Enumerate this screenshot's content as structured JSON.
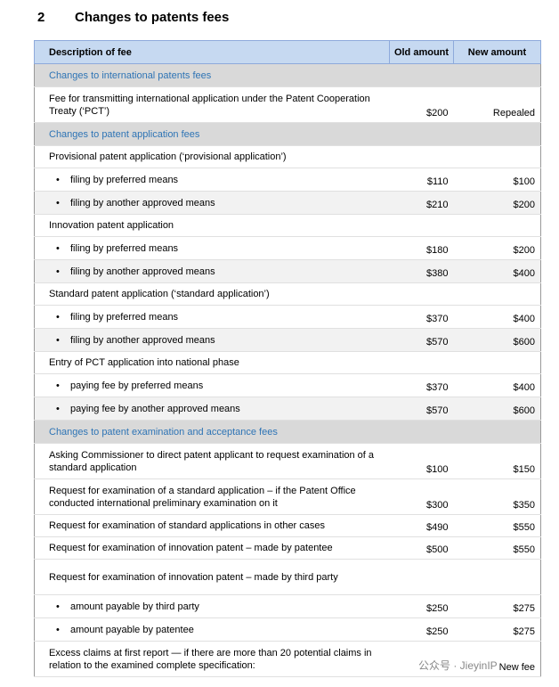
{
  "heading": {
    "number": "2",
    "title": "Changes to patents fees"
  },
  "table": {
    "header": [
      "Description of fee",
      "Old amount",
      "New amount"
    ],
    "sections": [
      {
        "title": "Changes to international patents fees",
        "rows": [
          {
            "description": "Fee for transmitting international application under the Patent Cooperation Treaty (‘PCT’)",
            "old": "$200",
            "new": "Repealed"
          }
        ]
      },
      {
        "title": "Changes to patent application fees",
        "rows": [
          {
            "description": "Provisional patent application (‘provisional application’)",
            "items": [
              {
                "description": "filing by preferred means",
                "old": "$110",
                "new": "$100"
              },
              {
                "description": "filing by another approved means",
                "old": "$210",
                "new": "$200"
              }
            ]
          },
          {
            "description": "Innovation patent application",
            "items": [
              {
                "description": "filing by preferred means",
                "old": "$180",
                "new": "$200"
              },
              {
                "description": "filing by another approved means",
                "old": "$380",
                "new": "$400"
              }
            ]
          },
          {
            "description": "Standard patent application (‘standard application’)",
            "items": [
              {
                "description": "filing by preferred means",
                "old": "$370",
                "new": "$400"
              },
              {
                "description": "filing by another approved means",
                "old": "$570",
                "new": "$600"
              }
            ]
          },
          {
            "description": "Entry of PCT application into national phase",
            "items": [
              {
                "description": "paying fee by preferred means",
                "old": "$370",
                "new": "$400"
              },
              {
                "description": "paying fee by another approved means",
                "old": "$570",
                "new": "$600"
              }
            ]
          }
        ]
      },
      {
        "title": "Changes to patent examination and acceptance fees",
        "rows": [
          {
            "description": "Asking Commissioner to direct patent applicant to request examination of a standard application",
            "old": "$100",
            "new": "$150"
          },
          {
            "description": "Request for examination of a standard application – if the Patent Office conducted international preliminary examination on it",
            "old": "$300",
            "new": "$350"
          },
          {
            "description": "Request for examination of standard applications in other cases",
            "old": "$490",
            "new": "$550"
          },
          {
            "description": "Request for examination of innovation patent – made by patentee",
            "old": "$500",
            "new": "$550"
          },
          {
            "description": "Request for examination of innovation patent – made by third party",
            "items": [
              {
                "description": "amount payable by third party",
                "old": "$250",
                "new": "$275"
              },
              {
                "description": "amount payable by patentee",
                "old": "$250",
                "new": "$275"
              }
            ]
          },
          {
            "description": "Excess claims at first report — if there are more than 20 potential claims in relation to the examined complete specification:",
            "new": "New fee"
          }
        ]
      }
    ]
  },
  "watermark": "公众号 · JieyinIP"
}
